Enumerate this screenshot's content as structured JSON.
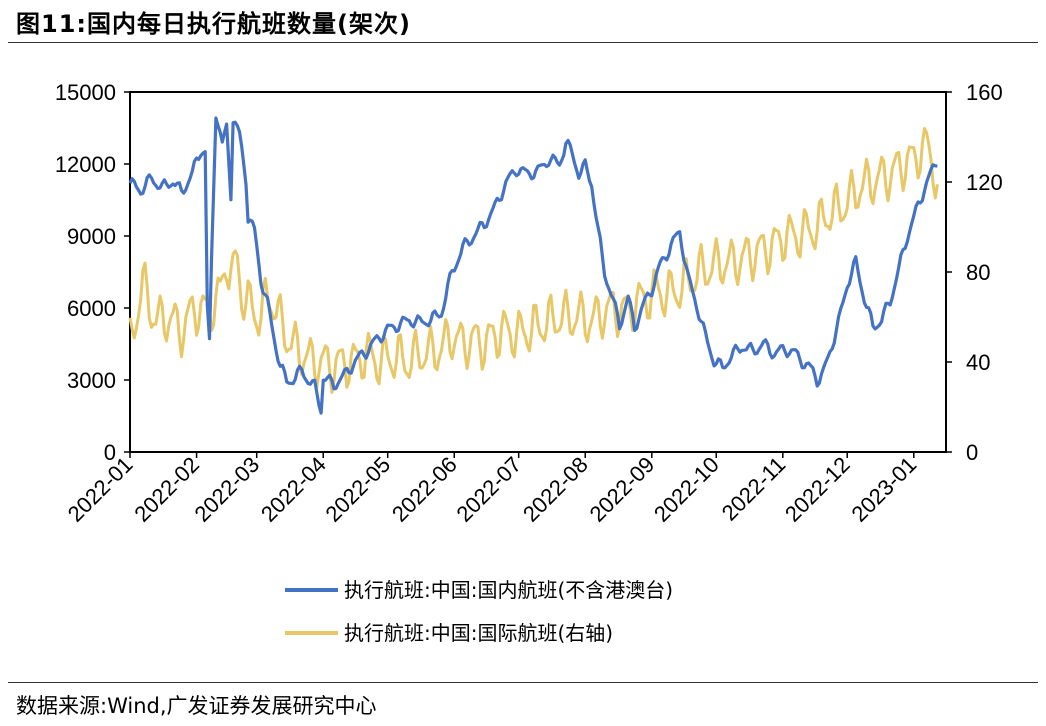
{
  "title": "图11:国内每日执行航班数量(架次)",
  "source": "数据来源:Wind,广发证券发展研究中心",
  "chart_data": {
    "type": "line",
    "x_labels": [
      "2022-01",
      "2022-02",
      "2022-03",
      "2022-04",
      "2022-05",
      "2022-06",
      "2022-07",
      "2022-08",
      "2022-09",
      "2022-10",
      "2022-11",
      "2022-12",
      "2023-01"
    ],
    "y_left": {
      "min": 0,
      "max": 15000,
      "ticks": [
        "0",
        "3000",
        "6000",
        "9000",
        "12000",
        "15000"
      ]
    },
    "y_right": {
      "min": 0,
      "max": 160,
      "ticks": [
        "0",
        "40",
        "80",
        "120",
        "160"
      ]
    },
    "series": [
      {
        "name": "执行航班:中国:国内航班(不含港澳台)",
        "axis": "left",
        "color": "#4472C4",
        "day_values": [
          [
            0,
            11200
          ],
          [
            5,
            10900
          ],
          [
            10,
            11400
          ],
          [
            15,
            11000
          ],
          [
            20,
            11300
          ],
          [
            24,
            10800
          ],
          [
            29,
            11600
          ],
          [
            33,
            12600
          ],
          [
            35,
            12500
          ],
          [
            36,
            6000
          ],
          [
            37,
            4500
          ],
          [
            38,
            8000
          ],
          [
            40,
            14200
          ],
          [
            43,
            12800
          ],
          [
            45,
            13500
          ],
          [
            47,
            10800
          ],
          [
            48,
            13900
          ],
          [
            51,
            13200
          ],
          [
            54,
            11400
          ],
          [
            55,
            9800
          ],
          [
            58,
            9200
          ],
          [
            61,
            7200
          ],
          [
            64,
            6200
          ],
          [
            67,
            4800
          ],
          [
            70,
            3600
          ],
          [
            73,
            2900
          ],
          [
            77,
            3100
          ],
          [
            80,
            3400
          ],
          [
            83,
            3000
          ],
          [
            86,
            2700
          ],
          [
            89,
            1800
          ],
          [
            90,
            3100
          ],
          [
            95,
            2800
          ],
          [
            100,
            3200
          ],
          [
            105,
            3800
          ],
          [
            110,
            4200
          ],
          [
            115,
            4700
          ],
          [
            120,
            5100
          ],
          [
            125,
            5300
          ],
          [
            130,
            5500
          ],
          [
            135,
            5400
          ],
          [
            140,
            5500
          ],
          [
            145,
            5800
          ],
          [
            150,
            7500
          ],
          [
            155,
            8500
          ],
          [
            160,
            9000
          ],
          [
            165,
            9500
          ],
          [
            170,
            10200
          ],
          [
            175,
            11200
          ],
          [
            180,
            11800
          ],
          [
            185,
            11600
          ],
          [
            190,
            11700
          ],
          [
            195,
            12200
          ],
          [
            200,
            12000
          ],
          [
            203,
            12900
          ],
          [
            206,
            12400
          ],
          [
            209,
            11600
          ],
          [
            212,
            11900
          ],
          [
            215,
            11200
          ],
          [
            218,
            9200
          ],
          [
            221,
            7500
          ],
          [
            224,
            6600
          ],
          [
            228,
            5300
          ],
          [
            232,
            6400
          ],
          [
            235,
            5200
          ],
          [
            239,
            6100
          ],
          [
            243,
            6800
          ],
          [
            247,
            7800
          ],
          [
            252,
            8600
          ],
          [
            256,
            9200
          ],
          [
            260,
            7200
          ],
          [
            264,
            6100
          ],
          [
            268,
            4800
          ],
          [
            272,
            3800
          ],
          [
            276,
            3500
          ],
          [
            280,
            4000
          ],
          [
            285,
            4400
          ],
          [
            290,
            4200
          ],
          [
            295,
            4500
          ],
          [
            300,
            4100
          ],
          [
            305,
            4300
          ],
          [
            310,
            4100
          ],
          [
            315,
            3600
          ],
          [
            318,
            3400
          ],
          [
            320,
            3000
          ],
          [
            323,
            3300
          ],
          [
            326,
            4200
          ],
          [
            330,
            5400
          ],
          [
            334,
            7000
          ],
          [
            338,
            7900
          ],
          [
            342,
            6400
          ],
          [
            346,
            5200
          ],
          [
            350,
            5500
          ],
          [
            354,
            6300
          ],
          [
            358,
            7600
          ],
          [
            362,
            9000
          ],
          [
            366,
            10000
          ],
          [
            370,
            11000
          ],
          [
            374,
            11800
          ],
          [
            376,
            12200
          ]
        ]
      },
      {
        "name": "执行航班:中国:国际航班(右轴)",
        "axis": "right",
        "color": "#E8C766",
        "day_values": [
          [
            0,
            48
          ],
          [
            6,
            75
          ],
          [
            12,
            58
          ],
          [
            18,
            60
          ],
          [
            24,
            54
          ],
          [
            30,
            64
          ],
          [
            36,
            62
          ],
          [
            42,
            70
          ],
          [
            45,
            85
          ],
          [
            48,
            78
          ],
          [
            50,
            86
          ],
          [
            52,
            70
          ],
          [
            55,
            66
          ],
          [
            60,
            60
          ],
          [
            65,
            70
          ],
          [
            70,
            58
          ],
          [
            75,
            48
          ],
          [
            80,
            44
          ],
          [
            85,
            40
          ],
          [
            90,
            40
          ],
          [
            95,
            38
          ],
          [
            100,
            40
          ],
          [
            105,
            40
          ],
          [
            110,
            44
          ],
          [
            115,
            40
          ],
          [
            120,
            42
          ],
          [
            125,
            42
          ],
          [
            130,
            40
          ],
          [
            135,
            44
          ],
          [
            140,
            44
          ],
          [
            145,
            46
          ],
          [
            150,
            52
          ],
          [
            155,
            48
          ],
          [
            160,
            50
          ],
          [
            165,
            48
          ],
          [
            170,
            52
          ],
          [
            175,
            54
          ],
          [
            180,
            52
          ],
          [
            185,
            54
          ],
          [
            190,
            56
          ],
          [
            195,
            58
          ],
          [
            200,
            60
          ],
          [
            205,
            60
          ],
          [
            210,
            60
          ],
          [
            215,
            58
          ],
          [
            220,
            62
          ],
          [
            225,
            64
          ],
          [
            230,
            62
          ],
          [
            235,
            66
          ],
          [
            240,
            68
          ],
          [
            245,
            72
          ],
          [
            250,
            70
          ],
          [
            255,
            72
          ],
          [
            260,
            76
          ],
          [
            265,
            80
          ],
          [
            270,
            82
          ],
          [
            275,
            84
          ],
          [
            280,
            84
          ],
          [
            285,
            86
          ],
          [
            290,
            88
          ],
          [
            295,
            90
          ],
          [
            300,
            92
          ],
          [
            305,
            96
          ],
          [
            310,
            96
          ],
          [
            315,
            98
          ],
          [
            320,
            100
          ],
          [
            325,
            106
          ],
          [
            330,
            108
          ],
          [
            335,
            112
          ],
          [
            340,
            118
          ],
          [
            345,
            120
          ],
          [
            350,
            122
          ],
          [
            355,
            124
          ],
          [
            360,
            128
          ],
          [
            365,
            130
          ],
          [
            368,
            134
          ],
          [
            371,
            136
          ],
          [
            374,
            128
          ],
          [
            376,
            118
          ]
        ]
      }
    ]
  }
}
